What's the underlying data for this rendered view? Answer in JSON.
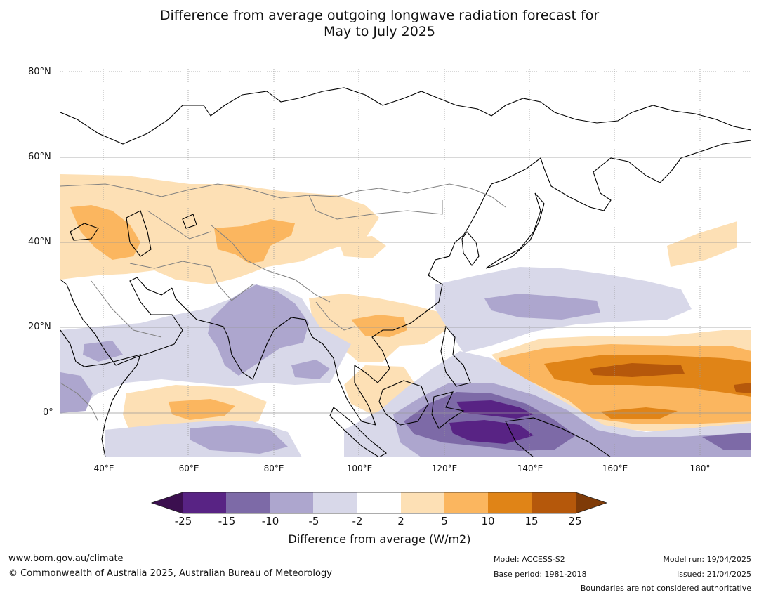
{
  "title_line1": "Difference from average outgoing longwave radiation forecast for",
  "title_line2": "May to July 2025",
  "lat_labels": [
    "80°N",
    "60°N",
    "40°N",
    "20°N",
    "0°"
  ],
  "lon_labels": [
    "40°E",
    "60°E",
    "80°E",
    "100°E",
    "120°E",
    "140°E",
    "160°E",
    "180°"
  ],
  "colorbar": {
    "ticks": [
      "-25",
      "-15",
      "-10",
      "-5",
      "-2",
      "2",
      "5",
      "10",
      "15",
      "25"
    ],
    "colors": [
      "#3b0f4f",
      "#582384",
      "#7d6aa7",
      "#ada6ce",
      "#d8d8e9",
      "#ffffff",
      "#fde0b5",
      "#fbb65f",
      "#e08417",
      "#b5580b",
      "#7f3b08"
    ],
    "label": "Difference from average (W/m2)"
  },
  "footer": {
    "url": "www.bom.gov.au/climate",
    "copyright": "© Commonwealth of Australia 2025, Australian Bureau of Meteorology",
    "model": "Model: ACCESS-S2",
    "base_period": "Base period: 1981-2018",
    "model_run": "Model run: 19/04/2025",
    "issued": "Issued: 21/04/2025",
    "disclaimer": "Boundaries are not considered authoritative"
  }
}
